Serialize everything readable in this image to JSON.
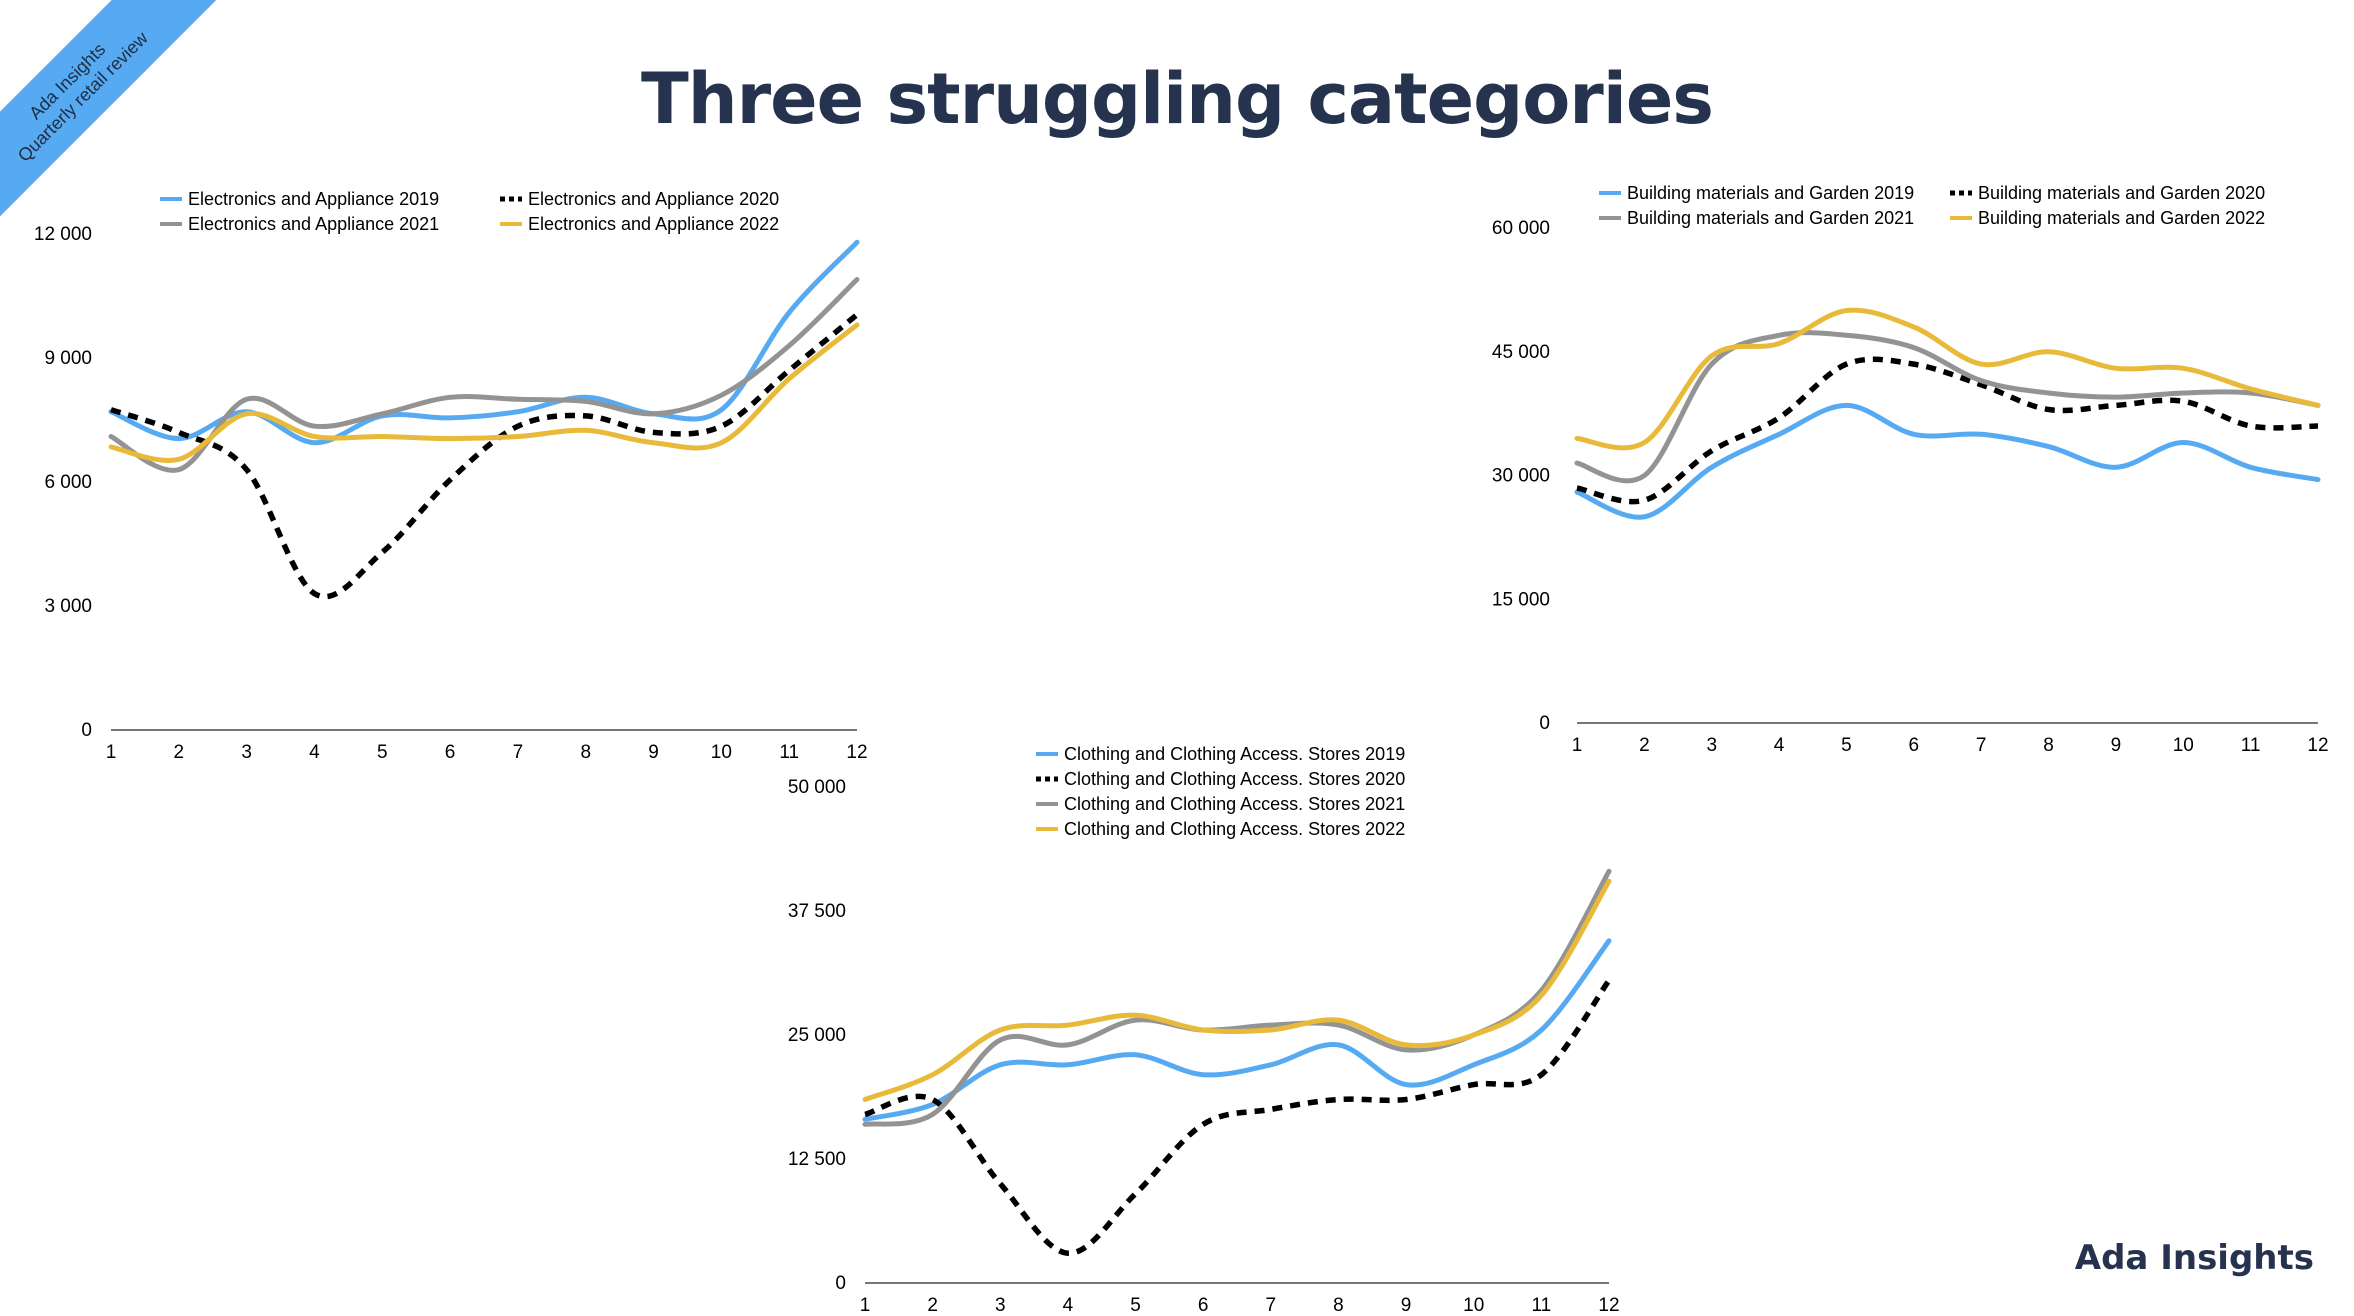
{
  "page": {
    "title": "Three struggling categories",
    "ribbon": {
      "line1": "Ada Insights",
      "line2": "Quarterly  retail review"
    },
    "brand": "Ada Insights",
    "colors": {
      "accent": "#56aaf2",
      "navy": "#26334f"
    }
  },
  "chart_data": [
    {
      "type": "line",
      "title": "",
      "xlabel": "",
      "ylabel": "",
      "x": [
        1,
        2,
        3,
        4,
        5,
        6,
        7,
        8,
        9,
        10,
        11,
        12
      ],
      "ylim": [
        0,
        12000
      ],
      "yticks": [
        0,
        3000,
        6000,
        9000,
        12000
      ],
      "ytick_labels": [
        "0",
        "3 000",
        "6 000",
        "9 000",
        "12 000"
      ],
      "grid": false,
      "legend_position": "top",
      "series": [
        {
          "name": "Electronics and Appliance 2019",
          "color": "#56aaf2",
          "dash": false,
          "values": [
            7700,
            7050,
            7700,
            6950,
            7600,
            7550,
            7700,
            8050,
            7650,
            7750,
            10100,
            11800
          ]
        },
        {
          "name": "Electronics and Appliance 2020",
          "color": "#000000",
          "dash": true,
          "values": [
            7750,
            7200,
            6300,
            3300,
            4300,
            6050,
            7350,
            7600,
            7200,
            7350,
            8700,
            10050
          ]
        },
        {
          "name": "Electronics and Appliance 2021",
          "color": "#939393",
          "dash": false,
          "values": [
            7100,
            6300,
            8000,
            7350,
            7650,
            8050,
            8000,
            7950,
            7650,
            8100,
            9300,
            10900
          ]
        },
        {
          "name": "Electronics and Appliance 2022",
          "color": "#e9b93a",
          "dash": false,
          "values": [
            6850,
            6550,
            7650,
            7100,
            7100,
            7050,
            7100,
            7250,
            6950,
            6950,
            8500,
            9800
          ]
        }
      ]
    },
    {
      "type": "line",
      "title": "",
      "xlabel": "",
      "ylabel": "",
      "x": [
        1,
        2,
        3,
        4,
        5,
        6,
        7,
        8,
        9,
        10,
        11,
        12
      ],
      "ylim": [
        0,
        60000
      ],
      "yticks": [
        0,
        15000,
        30000,
        45000,
        60000
      ],
      "ytick_labels": [
        "0",
        "15 000",
        "30 000",
        "45 000",
        "60 000"
      ],
      "grid": false,
      "legend_position": "top",
      "series": [
        {
          "name": "Building materials and Garden 2019",
          "color": "#56aaf2",
          "dash": false,
          "values": [
            28000,
            25000,
            31000,
            35000,
            38500,
            35000,
            35000,
            33500,
            31000,
            34000,
            31000,
            29500
          ]
        },
        {
          "name": "Building materials and Garden 2020",
          "color": "#000000",
          "dash": true,
          "values": [
            28500,
            27000,
            33000,
            37000,
            43500,
            43500,
            41000,
            38000,
            38500,
            39000,
            36000,
            36000
          ]
        },
        {
          "name": "Building materials and Garden 2021",
          "color": "#939393",
          "dash": false,
          "values": [
            31500,
            30000,
            43500,
            47000,
            47000,
            45500,
            41500,
            40000,
            39500,
            40000,
            40000,
            38500
          ]
        },
        {
          "name": "Building materials and Garden 2022",
          "color": "#e9b93a",
          "dash": false,
          "values": [
            34500,
            34000,
            44500,
            46000,
            50000,
            48000,
            43500,
            45000,
            43000,
            43000,
            40500,
            38500
          ]
        }
      ]
    },
    {
      "type": "line",
      "title": "",
      "xlabel": "",
      "ylabel": "",
      "x": [
        1,
        2,
        3,
        4,
        5,
        6,
        7,
        8,
        9,
        10,
        11,
        12
      ],
      "ylim": [
        0,
        50000
      ],
      "yticks": [
        0,
        12500,
        25000,
        37500,
        50000
      ],
      "ytick_labels": [
        "0",
        "12 500",
        "25 000",
        "37 500",
        "50 000"
      ],
      "grid": false,
      "legend_position": "top-left",
      "series": [
        {
          "name": "Clothing and Clothing Access. Stores 2019",
          "color": "#56aaf2",
          "dash": false,
          "values": [
            16500,
            18000,
            22000,
            22000,
            23000,
            21000,
            22000,
            24000,
            20000,
            22000,
            25500,
            34500
          ]
        },
        {
          "name": "Clothing and Clothing Access. Stores 2020",
          "color": "#000000",
          "dash": true,
          "values": [
            17000,
            18500,
            10000,
            3000,
            9000,
            16000,
            17500,
            18500,
            18500,
            20000,
            21000,
            30500
          ]
        },
        {
          "name": "Clothing and Clothing Access. Stores 2021",
          "color": "#939393",
          "dash": false,
          "values": [
            16000,
            17000,
            24500,
            24000,
            26500,
            25500,
            26000,
            26000,
            23500,
            25000,
            29500,
            41500
          ]
        },
        {
          "name": "Clothing and Clothing Access. Stores 2022",
          "color": "#e9b93a",
          "dash": false,
          "values": [
            18500,
            21000,
            25500,
            26000,
            27000,
            25500,
            25500,
            26500,
            24000,
            25000,
            29000,
            40500
          ]
        }
      ]
    }
  ]
}
